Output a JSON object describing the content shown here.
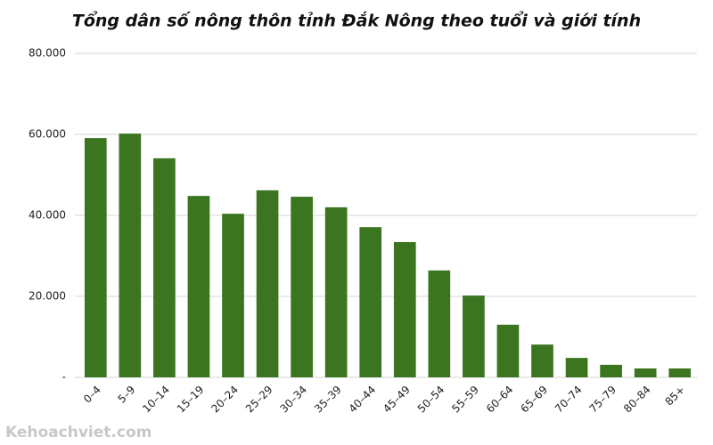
{
  "chart_data": {
    "type": "bar",
    "title": "Tổng dân số nông thôn tỉnh Đắk Nông theo tuổi và giới tính",
    "watermark": "Kehoachviet.com",
    "categories": [
      "0–4",
      "5–9",
      "10–14",
      "15–19",
      "20–24",
      "25–29",
      "30–34",
      "35–39",
      "40–44",
      "45–49",
      "50–54",
      "55–59",
      "60–64",
      "65–69",
      "70–74",
      "75–79",
      "80–84",
      "85+"
    ],
    "values": [
      59100,
      60200,
      54100,
      44800,
      40400,
      46200,
      44600,
      42000,
      37100,
      33400,
      26400,
      20200,
      13000,
      8100,
      4800,
      3100,
      2200,
      2200
    ],
    "color": "#3b7520",
    "ylim": [
      0,
      80000
    ],
    "yticks": [
      {
        "value": 0,
        "label": "-"
      },
      {
        "value": 20000,
        "label": "20.000"
      },
      {
        "value": 40000,
        "label": "40.000"
      },
      {
        "value": 60000,
        "label": "60.000"
      },
      {
        "value": 80000,
        "label": "80.000"
      }
    ],
    "grid": true
  }
}
